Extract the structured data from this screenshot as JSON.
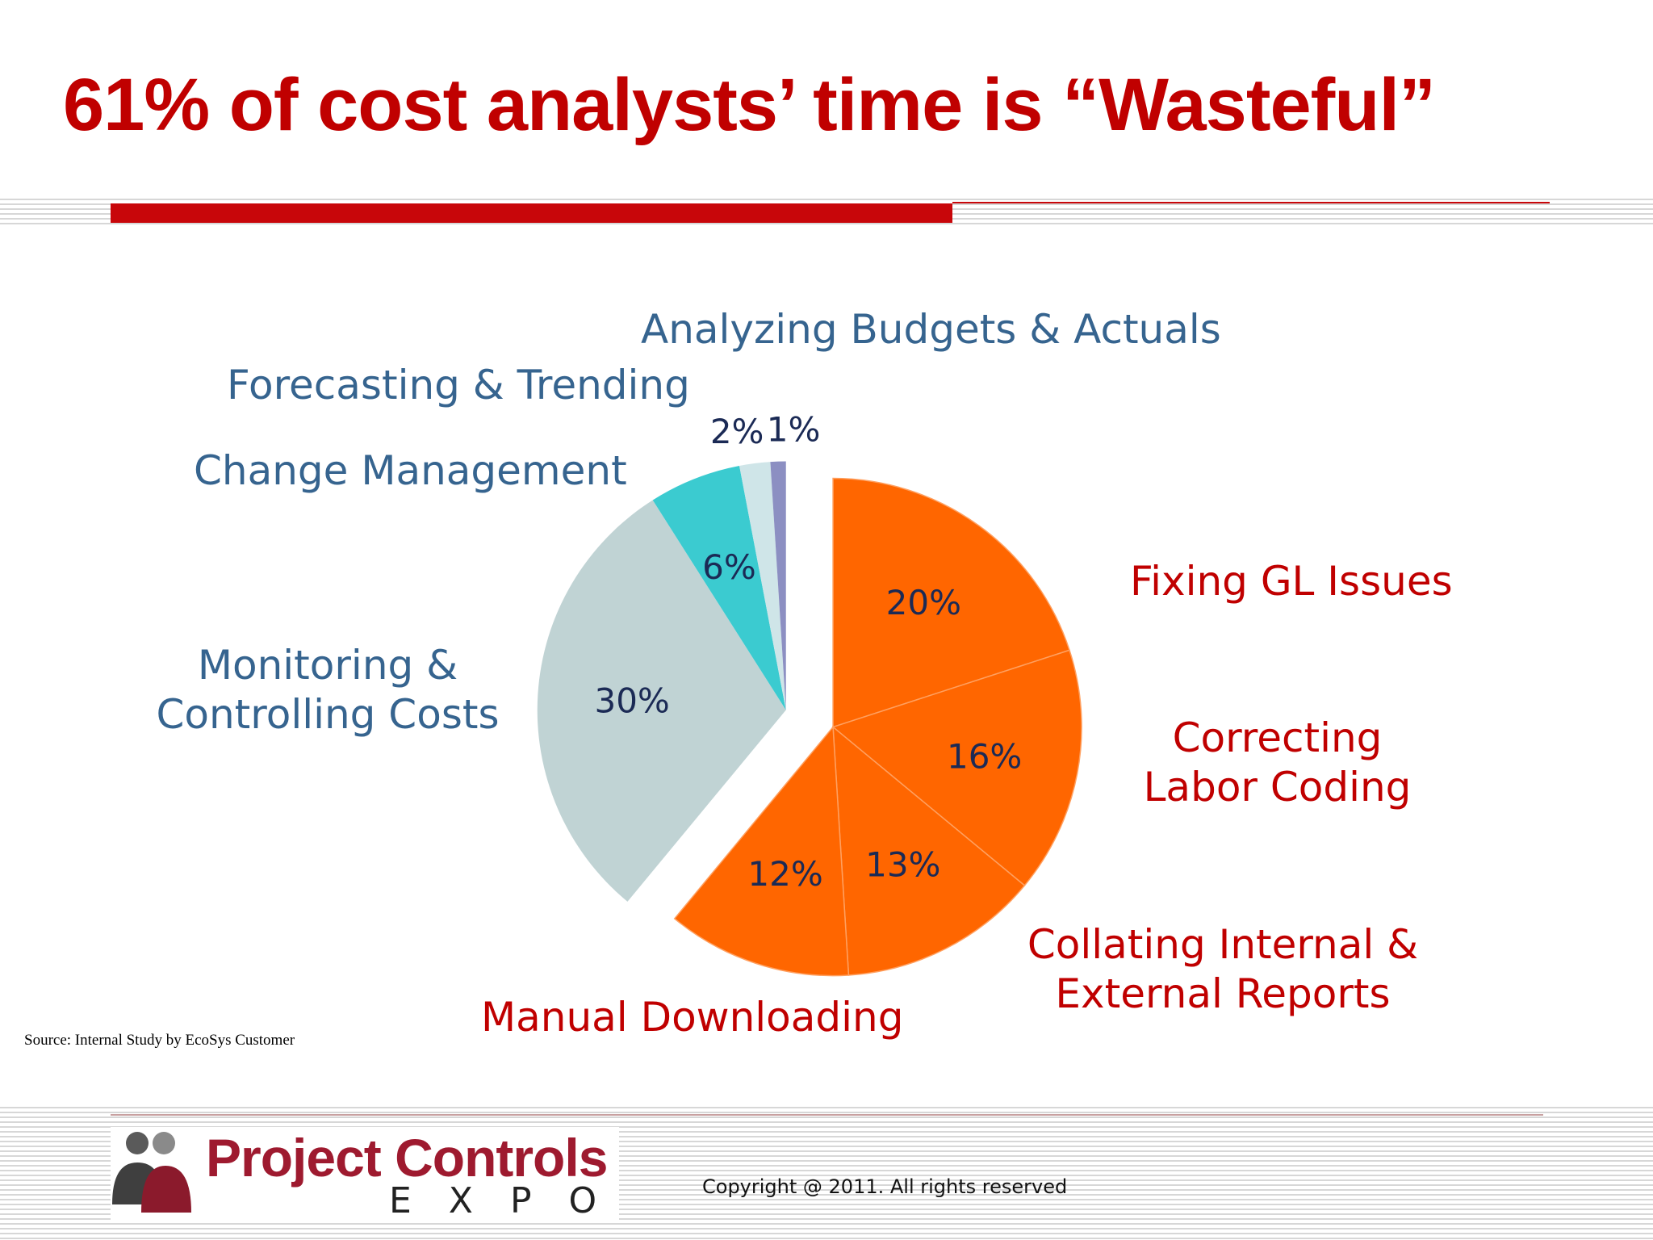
{
  "title": "61% of cost analysts’ time is “Wasteful”",
  "colors": {
    "title": "#c00000",
    "wasteful_label": "#c00000",
    "productive_label": "#36648f",
    "wasteful_slice": "#ff6600",
    "percent_label": "#1b2a55"
  },
  "chart_data": {
    "type": "pie",
    "title": "",
    "slices": [
      {
        "label": "Fixing GL Issues",
        "value": 20,
        "value_label": "20%",
        "color": "#ff6600",
        "group": "wasteful"
      },
      {
        "label": "Correcting Labor Coding",
        "value": 16,
        "value_label": "16%",
        "color": "#ff6600",
        "group": "wasteful"
      },
      {
        "label": "Collating Internal & External Reports",
        "value": 13,
        "value_label": "13%",
        "color": "#ff6600",
        "group": "wasteful"
      },
      {
        "label": "Manual Downloading",
        "value": 12,
        "value_label": "12%",
        "color": "#ff6600",
        "group": "wasteful"
      },
      {
        "label": "Monitoring & Controlling Costs",
        "value": 30,
        "value_label": "30%",
        "color": "#c0d3d4",
        "group": "productive"
      },
      {
        "label": "Change Management",
        "value": 6,
        "value_label": "6%",
        "color": "#3bcbd0",
        "group": "productive"
      },
      {
        "label": "Forecasting & Trending",
        "value": 2,
        "value_label": "2%",
        "color": "#cfe5e8",
        "group": "productive"
      },
      {
        "label": "Analyzing Budgets & Actuals",
        "value": 1,
        "value_label": "1%",
        "color": "#8c8fc2",
        "group": "productive"
      }
    ],
    "category_labels": {
      "fixing_gl": "Fixing GL Issues",
      "labor_1": "Correcting",
      "labor_2": "Labor Coding",
      "collating_1": "Collating Internal &",
      "collating_2": "External Reports",
      "downloading": "Manual Downloading",
      "monitoring_1": "Monitoring &",
      "monitoring_2": "Controlling Costs",
      "change": "Change Management",
      "forecasting": "Forecasting & Trending",
      "analyzing": "Analyzing Budgets & Actuals"
    },
    "exploded_group": "wasteful"
  },
  "source": "Source: Internal Study by EcoSys Customer",
  "logo": {
    "main": "Project Controls",
    "sub": "EXPO"
  },
  "copyright": "Copyright @ 2011. All rights reserved"
}
